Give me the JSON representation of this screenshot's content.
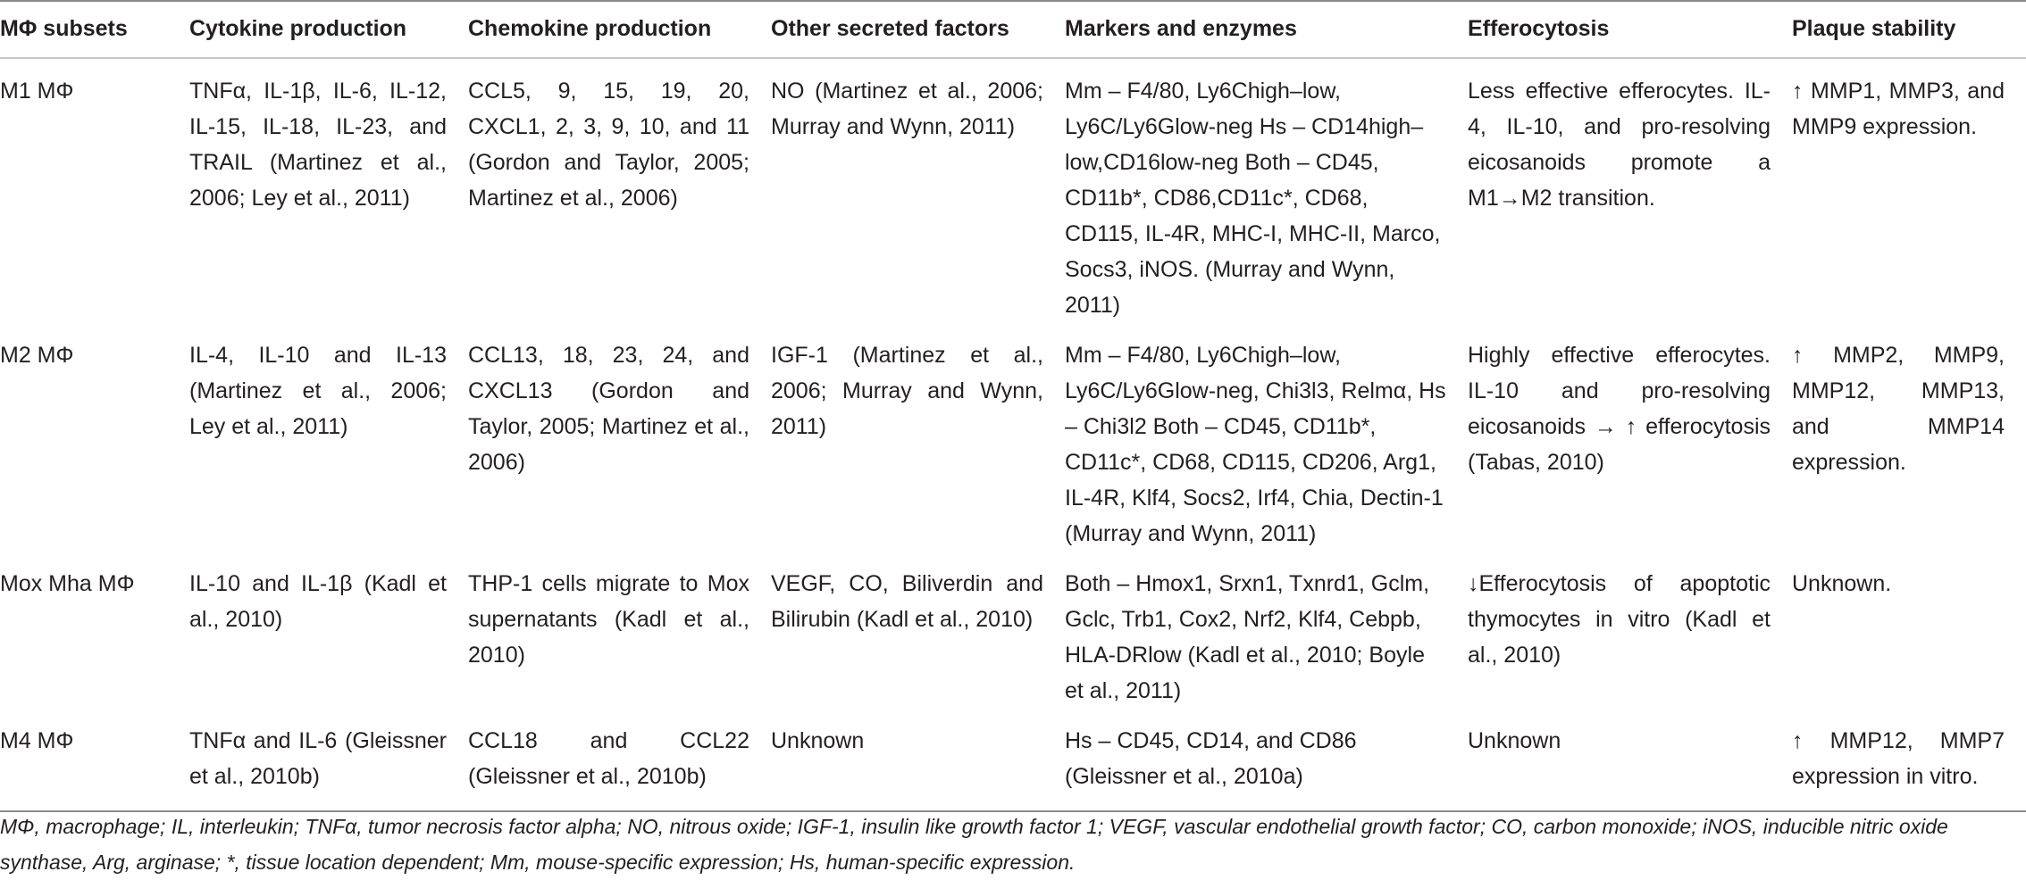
{
  "headers": {
    "subsets": "MΦ subsets",
    "cytokine": "Cytokine production",
    "chemokine": "Chemokine production",
    "other": "Other secreted factors",
    "markers": "Markers and enzymes",
    "efferocytosis": "Efferocytosis",
    "plaque": "Plaque stability"
  },
  "rows": [
    {
      "subset": "M1 MΦ",
      "cytokine": "TNFα, IL-1β, IL-6, IL-12, IL-15, IL-18, IL-23, and TRAIL (Martinez et al., 2006; Ley et al., 2011)",
      "chemokine": "CCL5, 9, 15, 19, 20, CXCL1, 2, 3, 9, 10, and 11 (Gordon and Taylor, 2005; Martinez et al., 2006)",
      "other": "NO (Martinez et al., 2006; Murray and Wynn, 2011)",
      "markers": "Mm – F4/80, Ly6Chigh–low, Ly6C/Ly6Glow-neg Hs – CD14high–low,CD16low-neg Both – CD45, CD11b*, CD86,CD11c*, CD68, CD115, IL-4R, MHC-I, MHC-II, Marco, Socs3, iNOS. (Murray and Wynn, 2011)",
      "efferocytosis": "Less effective efferocytes. IL-4, IL-10, and pro-resolving eicosanoids promote a M1→M2 transition.",
      "plaque": "↑ MMP1, MMP3, and MMP9 expression."
    },
    {
      "subset": "M2 MΦ",
      "cytokine": "IL-4, IL-10 and IL-13 (Martinez et al., 2006; Ley et al., 2011)",
      "chemokine": "CCL13, 18, 23, 24, and CXCL13 (Gordon and Taylor, 2005; Martinez et al., 2006)",
      "other": "IGF-1 (Martinez et al., 2006; Murray and Wynn, 2011)",
      "markers": "Mm – F4/80, Ly6Chigh–low, Ly6C/Ly6Glow-neg, Chi3l3, Relmα, Hs – Chi3l2 Both – CD45, CD11b*, CD11c*, CD68, CD115, CD206, Arg1, IL-4R, Klf4, Socs2, Irf4, Chia, Dectin-1 (Murray and Wynn, 2011)",
      "efferocytosis": "Highly effective efferocytes. IL-10 and pro-resolving eicosanoids → ↑ efferocytosis (Tabas, 2010)",
      "plaque": "↑ MMP2, MMP9, MMP12, MMP13, and MMP14 expression."
    },
    {
      "subset": "Mox Mha MΦ",
      "cytokine": "IL-10 and IL-1β (Kadl et al., 2010)",
      "chemokine": "THP-1 cells migrate to Mox supernatants (Kadl et al., 2010)",
      "other": "VEGF, CO, Biliverdin and Bilirubin (Kadl et al., 2010)",
      "markers": "Both – Hmox1, Srxn1, Txnrd1, Gclm, Gclc, Trb1, Cox2, Nrf2, Klf4, Cebpb, HLA-DRlow (Kadl et al., 2010; Boyle et al., 2011)",
      "efferocytosis": "↓Efferocytosis of apoptotic thymocytes in vitro (Kadl et al., 2010)",
      "plaque": "Unknown."
    },
    {
      "subset": "M4 MΦ",
      "cytokine": "TNFα and IL-6 (Gleissner et al., 2010b)",
      "chemokine": "CCL18 and CCL22 (Gleissner et al., 2010b)",
      "other": "Unknown",
      "markers": "Hs – CD45, CD14, and CD86 (Gleissner et al., 2010a)",
      "efferocytosis": "Unknown",
      "plaque": "↑ MMP12, MMP7 expression in vitro."
    }
  ],
  "footnote": "MΦ, macrophage; IL, interleukin; TNFα, tumor necrosis factor alpha; NO, nitrous oxide; IGF-1, insulin like growth factor 1; VEGF, vascular endothelial growth factor; CO, carbon monoxide; iNOS, inducible nitric oxide synthase, Arg, arginase; *, tissue location dependent; Mm, mouse-specific expression; Hs, human-specific expression."
}
